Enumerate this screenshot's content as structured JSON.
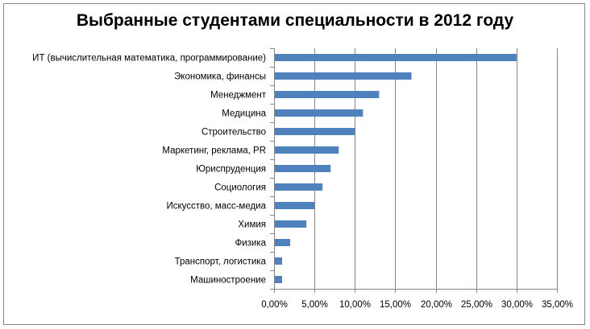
{
  "chart_data": {
    "type": "bar",
    "orientation": "horizontal",
    "title": "Выбранные студентами специальности в 2012 году",
    "xlabel": "",
    "ylabel": "",
    "xlim": [
      0,
      35
    ],
    "grid": true,
    "legend": "none",
    "bar_color": "#4f81bd",
    "categories": [
      "ИТ (вычислительная математика, программирование)",
      "Экономика, финансы",
      "Менеджмент",
      "Медицина",
      "Строительство",
      "Маркетинг, реклама, PR",
      "Юриспруденция",
      "Социология",
      "Искусство, масс-медиа",
      "Химия",
      "Физика",
      "Транспорт, логистика",
      "Машиностроение"
    ],
    "values": [
      30,
      17,
      13,
      11,
      10,
      8,
      7,
      6,
      5,
      4,
      2,
      1,
      1
    ],
    "ticks": [
      "0,00%",
      "5,00%",
      "10,00%",
      "15,00%",
      "20,00%",
      "25,00%",
      "30,00%",
      "35,00%"
    ]
  }
}
